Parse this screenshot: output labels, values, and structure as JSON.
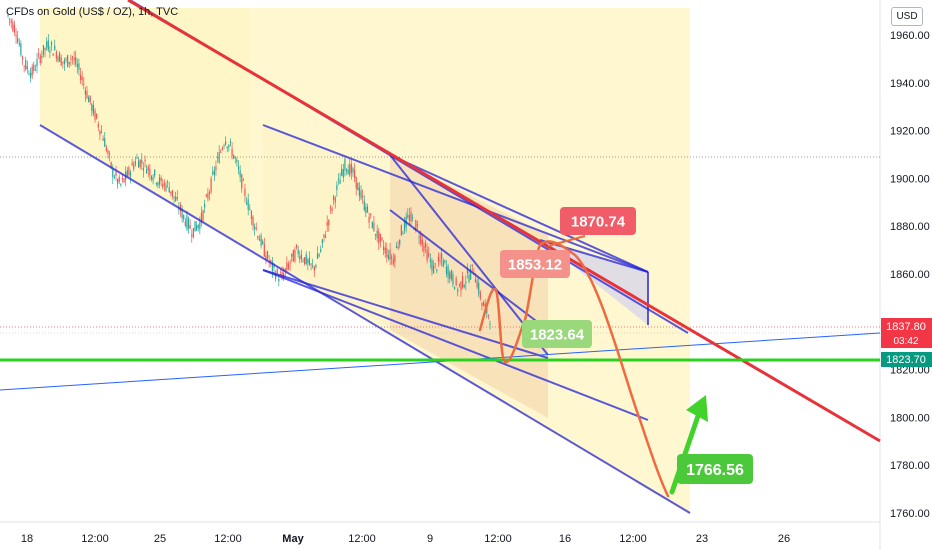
{
  "header": {
    "symbol_title": "CFDs on Gold (US$ / OZ), 1h, TVC"
  },
  "toolbar": {
    "currency": "USD"
  },
  "colors": {
    "bull": "#26a69a",
    "bear": "#ef5350",
    "channel_line": "#2323d9",
    "resistance": "#e8323a",
    "support": "#2bd11f",
    "projection": "#f0693f",
    "zone_fill": "#fff6c8",
    "zone_inner": "#f2e8cb",
    "price_tag": "#f23645",
    "target_green": "#4caf50"
  },
  "chart_data": {
    "type": "candlestick",
    "y_axis": {
      "range": [
        1752,
        1972
      ],
      "ticks": [
        "1960.00",
        "1940.00",
        "1920.00",
        "1900.00",
        "1880.00",
        "1860.00",
        "1840.00",
        "1820.00",
        "1800.00",
        "1780.00",
        "1760.00"
      ]
    },
    "x_axis": {
      "ticks": [
        "18",
        "12:00",
        "25",
        "12:00",
        "May",
        "12:00",
        "9",
        "12:00",
        "16",
        "12:00",
        "23",
        "26"
      ]
    },
    "price_path": [
      1968,
      1962,
      1948,
      1944,
      1951,
      1956,
      1953,
      1948,
      1951,
      1944,
      1934,
      1925,
      1916,
      1903,
      1897,
      1902,
      1908,
      1906,
      1902,
      1898,
      1897,
      1890,
      1883,
      1878,
      1882,
      1894,
      1906,
      1917,
      1911,
      1900,
      1888,
      1878,
      1869,
      1862,
      1858,
      1864,
      1870,
      1866,
      1862,
      1870,
      1884,
      1896,
      1906,
      1902,
      1892,
      1884,
      1876,
      1870,
      1866,
      1878,
      1884,
      1879,
      1870,
      1862,
      1866,
      1860,
      1854,
      1858,
      1862,
      1848,
      1842
    ],
    "current_price": {
      "value": "1837.80",
      "countdown": "03:42"
    },
    "support_level": {
      "value": "1823.70"
    },
    "projection_labels": [
      "1870.74",
      "1853.12",
      "1823.64",
      "1766.56"
    ]
  }
}
